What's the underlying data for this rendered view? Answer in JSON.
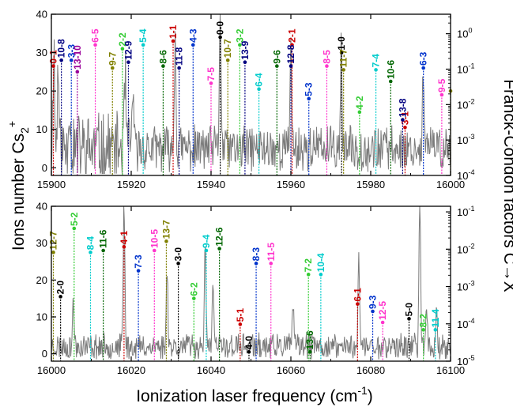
{
  "chart_data": {
    "type": "line",
    "ylabel_left": "Ions number Cs",
    "ylabel_left_sub": "2",
    "ylabel_left_sup": "+",
    "ylabel_right": "Franck-Condon factors C→X",
    "xlabel": "Ionization laser frequency (cm",
    "xlabel_sup": "-1",
    "xlabel_end": ")",
    "panels": [
      {
        "xlim": [
          15900,
          16000
        ],
        "x_ticks": [
          "15900",
          "15920",
          "15940",
          "15960",
          "15980",
          "16000"
        ],
        "ylim": [
          -2,
          40
        ],
        "y_ticks": [
          "0",
          "10",
          "20",
          "30",
          "40"
        ],
        "y2_log_range": [
          -4,
          0.55
        ],
        "y2_ticks": [
          "10",
          "10",
          "10",
          "10",
          "10"
        ],
        "y2_tick_exponents": [
          "-4",
          "-3",
          "-2",
          "-1",
          "0"
        ],
        "spectrum_seed": 11,
        "spectrum_peaks": [
          [
            15900.6,
            28
          ],
          [
            15901.7,
            22
          ],
          [
            15904.5,
            14
          ],
          [
            15918.5,
            18
          ],
          [
            15920.4,
            16
          ],
          [
            15931,
            30
          ],
          [
            15942.3,
            40
          ],
          [
            15960,
            30
          ],
          [
            15972.6,
            26
          ],
          [
            15993.2,
            22
          ]
        ],
        "bands": [
          {
            "label": "0-1",
            "x": 15900.5,
            "top": 26.5,
            "color": "#cc0000"
          },
          {
            "label": "10-8",
            "x": 15902.5,
            "top": 28,
            "color": "#000080"
          },
          {
            "label": "3-3",
            "x": 15905,
            "top": 28,
            "color": "#0033cc"
          },
          {
            "label": "13-10",
            "x": 15906.5,
            "top": 25,
            "color": "#990099"
          },
          {
            "label": "6-5",
            "x": 15911,
            "top": 32,
            "color": "#ff33cc"
          },
          {
            "label": "9-7",
            "x": 15915.3,
            "top": 26,
            "color": "#808000"
          },
          {
            "label": "2-2",
            "x": 15917.8,
            "top": 31,
            "color": "#33cc33"
          },
          {
            "label": "12-9",
            "x": 15919.3,
            "top": 27.5,
            "color": "#000080"
          },
          {
            "label": "5-4",
            "x": 15923,
            "top": 32,
            "color": "#00cccc"
          },
          {
            "label": "8-6",
            "x": 15928,
            "top": 26.5,
            "color": "#006600"
          },
          {
            "label": "1-1",
            "x": 15930.5,
            "top": 33,
            "color": "#cc0000"
          },
          {
            "label": "11-8",
            "x": 15932,
            "top": 26,
            "color": "#000080"
          },
          {
            "label": "4-3",
            "x": 15935.5,
            "top": 32,
            "color": "#0033cc"
          },
          {
            "label": "7-5",
            "x": 15940,
            "top": 22,
            "color": "#ff33cc"
          },
          {
            "label": "0-0",
            "x": 15942.3,
            "top": 34,
            "color": "#000000"
          },
          {
            "label": "10-7",
            "x": 15944.2,
            "top": 28,
            "color": "#808000"
          },
          {
            "label": "3-2",
            "x": 15947.2,
            "top": 32,
            "color": "#33cc33"
          },
          {
            "label": "13-9",
            "x": 15948.5,
            "top": 27.5,
            "color": "#000080"
          },
          {
            "label": "6-4",
            "x": 15952,
            "top": 20.5,
            "color": "#00cccc"
          },
          {
            "label": "9-6",
            "x": 15956.5,
            "top": 26.5,
            "color": "#006600"
          },
          {
            "label": "2-1",
            "x": 15960.3,
            "top": 32,
            "color": "#cc0000"
          },
          {
            "label": "12-8",
            "x": 15960,
            "top": 26.5,
            "color": "#000080"
          },
          {
            "label": "5-3",
            "x": 15964.5,
            "top": 18,
            "color": "#0033cc"
          },
          {
            "label": "8-5",
            "x": 15969,
            "top": 26.5,
            "color": "#ff33cc"
          },
          {
            "label": "1-0",
            "x": 15972.7,
            "top": 30,
            "color": "#000000"
          },
          {
            "label": "11-7",
            "x": 15973.2,
            "top": 25.5,
            "color": "#808000"
          },
          {
            "label": "4-2",
            "x": 15977.2,
            "top": 14.5,
            "color": "#33cc33"
          },
          {
            "label": "7-4",
            "x": 15981.3,
            "top": 25.5,
            "color": "#00cccc"
          },
          {
            "label": "10-6",
            "x": 15985,
            "top": 22.5,
            "color": "#006600"
          },
          {
            "label": "3-1",
            "x": 15988.6,
            "top": 10.5,
            "color": "#cc0000"
          },
          {
            "label": "13-8",
            "x": 15988,
            "top": 12.5,
            "color": "#000080"
          },
          {
            "label": "6-3",
            "x": 15993.2,
            "top": 26,
            "color": "#0033cc"
          },
          {
            "label": "9-5",
            "x": 15997.8,
            "top": 19,
            "color": "#ff33cc"
          },
          {
            "label": "",
            "x": 16000,
            "top": 20,
            "color": "#808000"
          }
        ]
      },
      {
        "xlim": [
          16000,
          16100
        ],
        "x_ticks": [
          "16000",
          "16020",
          "16040",
          "16060",
          "16080",
          "16100"
        ],
        "ylim": [
          -2,
          40
        ],
        "y_ticks": [
          "0",
          "10",
          "20",
          "30",
          "40"
        ],
        "y2_log_range": [
          -5,
          -0.85
        ],
        "y2_ticks": [
          "10",
          "10",
          "10",
          "10",
          "10"
        ],
        "y2_tick_exponents": [
          "-5",
          "-4",
          "-3",
          "-2",
          "-1"
        ],
        "spectrum_seed": 23,
        "spectrum_peaks": [
          [
            16005.5,
            12
          ],
          [
            16018.2,
            40
          ],
          [
            16029,
            22
          ],
          [
            16038.5,
            26
          ],
          [
            16040.5,
            17
          ],
          [
            16060.5,
            12
          ],
          [
            16077,
            24
          ],
          [
            16092.3,
            40
          ],
          [
            16094,
            12
          ],
          [
            16096.5,
            10
          ]
        ],
        "bands": [
          {
            "label": "12-7",
            "x": 16000.5,
            "top": 27.5,
            "color": "#808000"
          },
          {
            "label": "2-0",
            "x": 16002.3,
            "top": 15.5,
            "color": "#000000"
          },
          {
            "label": "5-2",
            "x": 16005.7,
            "top": 34,
            "color": "#33cc33"
          },
          {
            "label": "8-4",
            "x": 16009.8,
            "top": 27.5,
            "color": "#00cccc"
          },
          {
            "label": "11-6",
            "x": 16013,
            "top": 28,
            "color": "#006600"
          },
          {
            "label": "4-1",
            "x": 16018.2,
            "top": 29,
            "color": "#cc0000"
          },
          {
            "label": "7-3",
            "x": 16021.8,
            "top": 22.5,
            "color": "#0033cc"
          },
          {
            "label": "10-5",
            "x": 16025.8,
            "top": 28,
            "color": "#ff33cc"
          },
          {
            "label": "13-7",
            "x": 16028.8,
            "top": 30.5,
            "color": "#808000"
          },
          {
            "label": "3-0",
            "x": 16031.8,
            "top": 24.5,
            "color": "#000000"
          },
          {
            "label": "6-2",
            "x": 16035.7,
            "top": 15,
            "color": "#33cc33"
          },
          {
            "label": "9-4",
            "x": 16038.8,
            "top": 28,
            "color": "#00cccc"
          },
          {
            "label": "12-6",
            "x": 16042.1,
            "top": 28.5,
            "color": "#006600"
          },
          {
            "label": "5-1",
            "x": 16047.3,
            "top": 8,
            "color": "#cc0000"
          },
          {
            "label": "4-0",
            "x": 16049.5,
            "top": 0.5,
            "color": "#000000"
          },
          {
            "label": "8-3",
            "x": 16051.3,
            "top": 24.5,
            "color": "#0033cc"
          },
          {
            "label": "11-5",
            "x": 16055,
            "top": 24.5,
            "color": "#ff33cc"
          },
          {
            "label": "7-2",
            "x": 16064.4,
            "top": 21.5,
            "color": "#33cc33"
          },
          {
            "label": "13-6",
            "x": 16064.8,
            "top": 0.5,
            "color": "#006600"
          },
          {
            "label": "10-4",
            "x": 16067.5,
            "top": 21.5,
            "color": "#00cccc"
          },
          {
            "label": "6-1",
            "x": 16076.7,
            "top": 13.5,
            "color": "#cc0000"
          },
          {
            "label": "9-3",
            "x": 16080.5,
            "top": 11.5,
            "color": "#0033cc"
          },
          {
            "label": "12-5",
            "x": 16083,
            "top": 8.5,
            "color": "#ff33cc"
          },
          {
            "label": "5-0",
            "x": 16089.6,
            "top": 9.5,
            "color": "#000000"
          },
          {
            "label": "8-2",
            "x": 16093.2,
            "top": 6.5,
            "color": "#33cc33"
          },
          {
            "label": "11-4",
            "x": 16096.2,
            "top": 6.5,
            "color": "#00cccc"
          }
        ]
      }
    ]
  }
}
